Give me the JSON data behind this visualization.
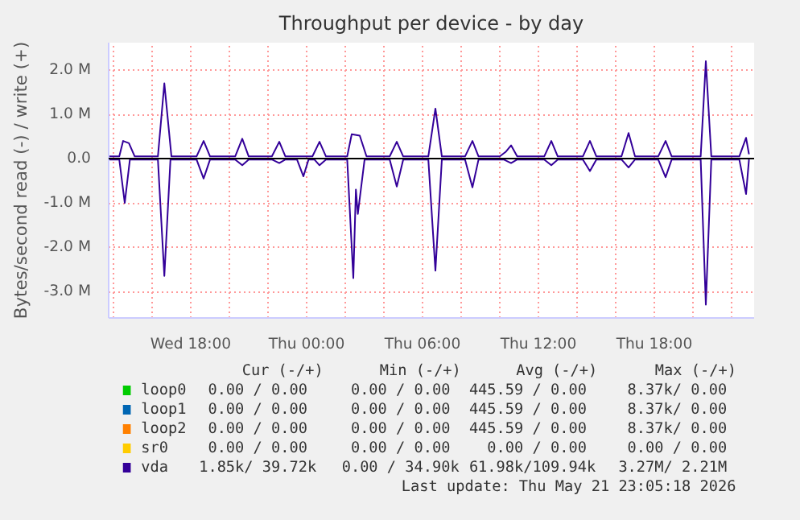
{
  "chart_data": {
    "type": "line",
    "title": "Throughput per device - by day",
    "ylabel": "Bytes/second read (-) / write (+)",
    "xlim": [
      "2026-05-20T13:45",
      "2026-05-21T23:10"
    ],
    "ylim": [
      -3600000,
      2620000
    ],
    "xticks": [
      {
        "value": "2026-05-20T14:00",
        "label": null
      },
      {
        "value": "2026-05-20T16:00",
        "label": null
      },
      {
        "value": "2026-05-20T18:00",
        "label": "Wed 18:00"
      },
      {
        "value": "2026-05-20T20:00",
        "label": null
      },
      {
        "value": "2026-05-20T22:00",
        "label": null
      },
      {
        "value": "2026-05-21T00:00",
        "label": "Thu 00:00"
      },
      {
        "value": "2026-05-21T02:00",
        "label": null
      },
      {
        "value": "2026-05-21T04:00",
        "label": null
      },
      {
        "value": "2026-05-21T06:00",
        "label": "Thu 06:00"
      },
      {
        "value": "2026-05-21T08:00",
        "label": null
      },
      {
        "value": "2026-05-21T10:00",
        "label": null
      },
      {
        "value": "2026-05-21T12:00",
        "label": "Thu 12:00"
      },
      {
        "value": "2026-05-21T14:00",
        "label": null
      },
      {
        "value": "2026-05-21T16:00",
        "label": null
      },
      {
        "value": "2026-05-21T18:00",
        "label": "Thu 18:00"
      },
      {
        "value": "2026-05-21T20:00",
        "label": null
      },
      {
        "value": "2026-05-21T22:00",
        "label": null
      }
    ],
    "yticks": [
      {
        "value": -3000000,
        "label": "-3.0 M"
      },
      {
        "value": -2000000,
        "label": "-2.0 M"
      },
      {
        "value": -1000000,
        "label": "-1.0 M"
      },
      {
        "value": 0,
        "label": "0.0"
      },
      {
        "value": 1000000,
        "label": "1.0 M"
      },
      {
        "value": 2000000,
        "label": "2.0 M"
      }
    ],
    "grid": true,
    "legend": "bottom",
    "ref_lines": [
      {
        "axis": "y",
        "value": 0,
        "color": "#000000"
      }
    ],
    "series": [
      {
        "name": "loop0",
        "color": "#00cc00"
      },
      {
        "name": "loop1",
        "color": "#0066b3"
      },
      {
        "name": "loop2",
        "color": "#ff8000"
      },
      {
        "name": "sr0",
        "color": "#ffcc00"
      },
      {
        "color": "#330099",
        "x": [
          "2026-05-20T13:45",
          "2026-05-20T14:18",
          "2026-05-20T14:35",
          "2026-05-20T14:51",
          "2026-05-20T16:18",
          "2026-05-20T16:38",
          "2026-05-20T16:57",
          "2026-05-20T18:18",
          "2026-05-20T18:40",
          "2026-05-20T19:00",
          "2026-05-20T20:18",
          "2026-05-20T20:40",
          "2026-05-20T21:00",
          "2026-05-20T22:12",
          "2026-05-20T22:35",
          "2026-05-20T22:54",
          "2026-05-20T23:30",
          "2026-05-20T23:50",
          "2026-05-21T00:06",
          "2026-05-21T00:24",
          "2026-05-21T00:40",
          "2026-05-21T01:00",
          "2026-05-21T02:06",
          "2026-05-21T02:25",
          "2026-05-21T02:33",
          "2026-05-21T02:39",
          "2026-05-21T03:00",
          "2026-05-21T04:18",
          "2026-05-21T04:40",
          "2026-05-21T05:00",
          "2026-05-21T06:18",
          "2026-05-21T06:40",
          "2026-05-21T07:00",
          "2026-05-21T08:12",
          "2026-05-21T08:35",
          "2026-05-21T08:54",
          "2026-05-21T10:12",
          "2026-05-21T10:35",
          "2026-05-21T10:54",
          "2026-05-21T12:18",
          "2026-05-21T12:40",
          "2026-05-21T13:00",
          "2026-05-21T14:18",
          "2026-05-21T14:40",
          "2026-05-21T15:00",
          "2026-05-21T16:18",
          "2026-05-21T16:40",
          "2026-05-21T17:00",
          "2026-05-21T18:12",
          "2026-05-21T18:35",
          "2026-05-21T18:54",
          "2026-05-21T20:24",
          "2026-05-21T20:40",
          "2026-05-21T20:57",
          "2026-05-21T22:24",
          "2026-05-21T22:45",
          "2026-05-21T22:54"
        ],
        "values": [
          -20000,
          -20000,
          -1000000,
          -20000,
          -20000,
          -2650000,
          -20000,
          -20000,
          -450000,
          -20000,
          -20000,
          -150000,
          -20000,
          -20000,
          -100000,
          -20000,
          -20000,
          -400000,
          -20000,
          -20000,
          -150000,
          -20000,
          -20000,
          -2700000,
          -700000,
          -1250000,
          -20000,
          -20000,
          -630000,
          -20000,
          -20000,
          -2530000,
          -20000,
          -20000,
          -650000,
          -20000,
          -20000,
          -100000,
          -20000,
          -20000,
          -150000,
          -20000,
          -20000,
          -280000,
          -20000,
          -20000,
          -200000,
          -20000,
          -20000,
          -420000,
          -20000,
          -20000,
          -3300000,
          -20000,
          -20000,
          -800000,
          -20000
        ]
      },
      {
        "name": "vda",
        "color": "#330099",
        "x": [
          "2026-05-20T13:45",
          "2026-05-20T14:18",
          "2026-05-20T14:30",
          "2026-05-20T14:48",
          "2026-05-20T15:06",
          "2026-05-20T16:18",
          "2026-05-20T16:38",
          "2026-05-20T17:00",
          "2026-05-20T18:18",
          "2026-05-20T18:40",
          "2026-05-20T19:00",
          "2026-05-20T20:18",
          "2026-05-20T20:40",
          "2026-05-20T21:00",
          "2026-05-20T22:12",
          "2026-05-20T22:35",
          "2026-05-20T22:54",
          "2026-05-21T00:18",
          "2026-05-21T00:40",
          "2026-05-21T01:00",
          "2026-05-21T02:06",
          "2026-05-21T02:20",
          "2026-05-21T02:45",
          "2026-05-21T03:06",
          "2026-05-21T04:18",
          "2026-05-21T04:40",
          "2026-05-21T05:00",
          "2026-05-21T06:18",
          "2026-05-21T06:40",
          "2026-05-21T07:00",
          "2026-05-21T08:12",
          "2026-05-21T08:35",
          "2026-05-21T08:54",
          "2026-05-21T10:00",
          "2026-05-21T10:18",
          "2026-05-21T10:35",
          "2026-05-21T10:54",
          "2026-05-21T12:18",
          "2026-05-21T12:40",
          "2026-05-21T13:00",
          "2026-05-21T14:18",
          "2026-05-21T14:40",
          "2026-05-21T15:00",
          "2026-05-21T16:18",
          "2026-05-21T16:40",
          "2026-05-21T17:00",
          "2026-05-21T18:12",
          "2026-05-21T18:35",
          "2026-05-21T18:54",
          "2026-05-21T20:24",
          "2026-05-21T20:40",
          "2026-05-21T20:57",
          "2026-05-21T22:24",
          "2026-05-21T22:45",
          "2026-05-21T22:54"
        ],
        "values": [
          50000,
          50000,
          400000,
          350000,
          50000,
          50000,
          1700000,
          50000,
          50000,
          400000,
          50000,
          50000,
          450000,
          50000,
          50000,
          380000,
          50000,
          50000,
          380000,
          50000,
          50000,
          550000,
          520000,
          50000,
          50000,
          380000,
          50000,
          50000,
          1130000,
          50000,
          50000,
          400000,
          50000,
          50000,
          150000,
          300000,
          50000,
          50000,
          400000,
          50000,
          50000,
          400000,
          50000,
          50000,
          580000,
          50000,
          50000,
          400000,
          50000,
          50000,
          2200000,
          50000,
          50000,
          470000,
          100000
        ]
      }
    ],
    "annotations": [
      "Cur (-/+)",
      "Min (-/+)",
      "Avg (-/+)",
      "Max (-/+)",
      "0.00 /  0.00",
      "0.00 /  0.00",
      "445.59 /  0.00",
      "8.37k/  0.00",
      "0.00 /  0.00",
      "0.00 /  0.00",
      "445.59 /  0.00",
      "8.37k/  0.00",
      "0.00 /  0.00",
      "0.00 /  0.00",
      "445.59 /  0.00",
      "8.37k/  0.00",
      "0.00 /  0.00",
      "0.00 /  0.00",
      "0.00 /  0.00",
      "0.00 /  0.00",
      "1.85k/ 39.72k",
      "0.00 / 34.90k",
      "61.98k/109.94k",
      "3.27M/  2.21M",
      "Last update: Thu May 21 23:05:18 2026"
    ]
  }
}
